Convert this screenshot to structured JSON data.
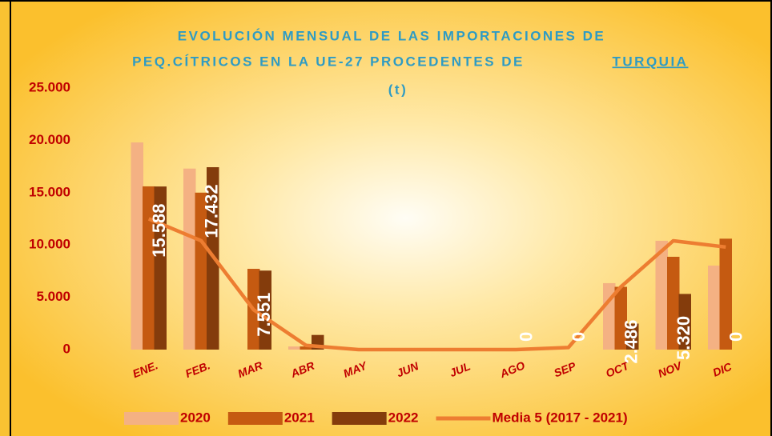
{
  "chart_data": {
    "type": "bar",
    "title": [
      "EVOLUCIÓN MENSUAL DE LAS IMPORTACIONES DE",
      "PEQ.CÍTRICOS EN LA UE-27 PROCEDENTES DE",
      "TURQUIA",
      "(t)"
    ],
    "categories": [
      "ENE.",
      "FEB.",
      "MAR",
      "ABR",
      "MAY",
      "JUN",
      "JUL",
      "AGO",
      "SEP",
      "OCT",
      "NOV",
      "DIC"
    ],
    "series": [
      {
        "name": "2020",
        "color": "#f4b183",
        "values": [
          19800,
          17300,
          0,
          300,
          0,
          0,
          0,
          0,
          0,
          6350,
          10400,
          8030
        ]
      },
      {
        "name": "2021",
        "color": "#c55a11",
        "values": [
          15600,
          15000,
          7720,
          300,
          0,
          0,
          0,
          0,
          0,
          6000,
          8870,
          10600
        ]
      },
      {
        "name": "2022",
        "color": "#843c0c",
        "values": [
          15588,
          17432,
          7551,
          1400,
          0,
          0,
          0,
          0,
          0,
          2486,
          5320,
          0
        ],
        "value_labels": [
          "15.588",
          "17.432",
          "7.551",
          null,
          null,
          null,
          null,
          "0",
          "0",
          "2.486",
          "5.320",
          "0"
        ]
      },
      {
        "name": "Media 5 (2017 - 2021)",
        "color": "#ed7d31",
        "type": "line",
        "values": [
          12500,
          10400,
          3800,
          400,
          0,
          0,
          0,
          0,
          200,
          6000,
          10400,
          9800
        ]
      }
    ],
    "ylim": [
      0,
      25000
    ],
    "yticks": [
      0,
      {
        "value": 5000,
        "label": "5.000"
      },
      {
        "value": 10000,
        "label": "10.000"
      },
      {
        "value": 15000,
        "label": "15.000"
      },
      {
        "value": 20000,
        "label": "20.000"
      },
      {
        "value": 25000,
        "label": "25.000"
      }
    ],
    "legend": "bottom"
  }
}
